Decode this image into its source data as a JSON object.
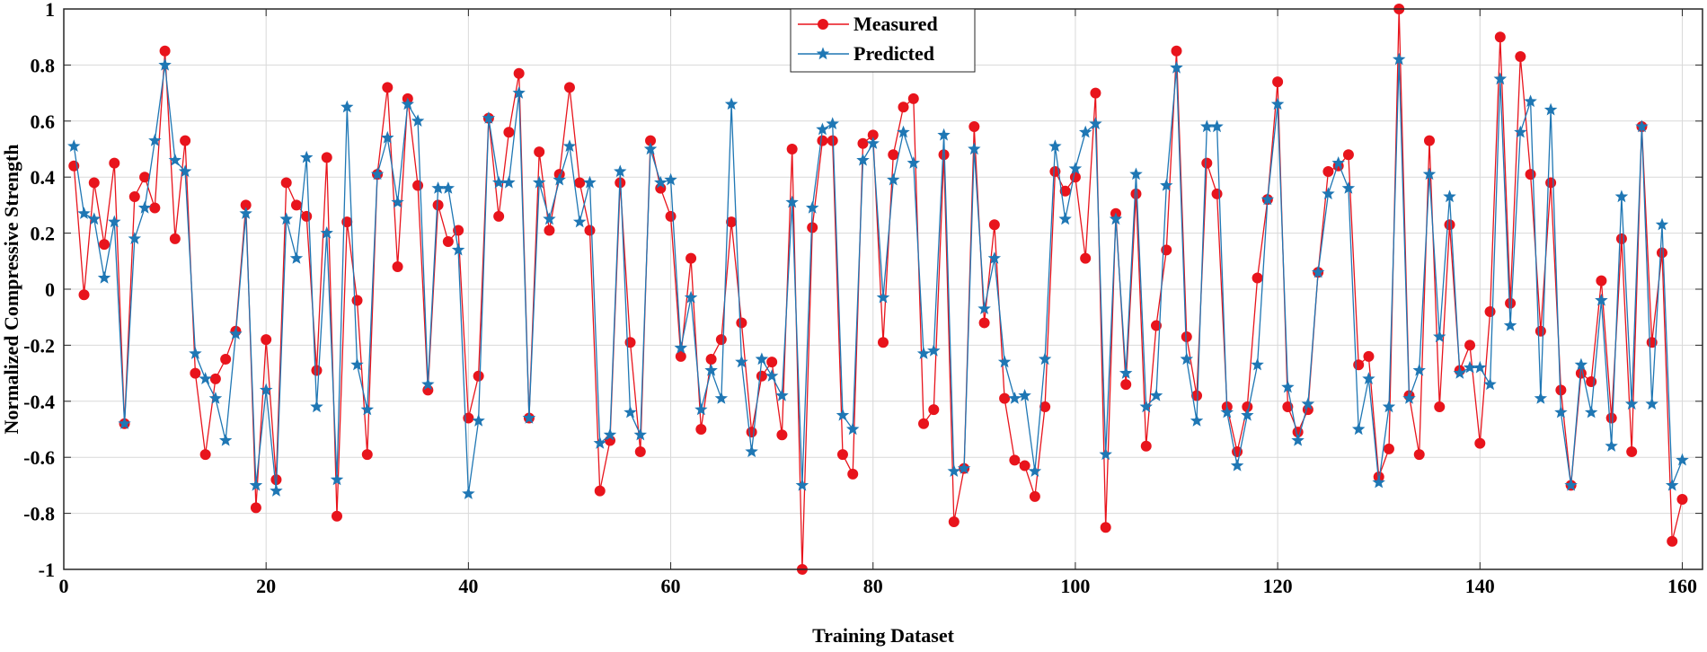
{
  "chart_data": {
    "type": "line",
    "title": "",
    "xlabel": "Training Dataset",
    "ylabel": "Normalized Compressive Strength",
    "xlim": [
      0,
      162
    ],
    "ylim": [
      -1,
      1
    ],
    "xticks": [
      0,
      20,
      40,
      60,
      80,
      100,
      120,
      140,
      160
    ],
    "yticks": [
      -1,
      -0.8,
      -0.6,
      -0.4,
      -0.2,
      0,
      0.2,
      0.4,
      0.6,
      0.8,
      1
    ],
    "xtick_labels": [
      "0",
      "20",
      "40",
      "60",
      "80",
      "100",
      "120",
      "140",
      "160"
    ],
    "ytick_labels": [
      "-1",
      "-0.8",
      "-0.6",
      "-0.4",
      "-0.2",
      "0",
      "0.2",
      "0.4",
      "0.6",
      "0.8",
      "1"
    ],
    "grid": true,
    "legend_position": "top-center",
    "series": [
      {
        "name": "Measured",
        "color": "#e8141c",
        "marker": "circle",
        "x": [
          1,
          2,
          3,
          4,
          5,
          6,
          7,
          8,
          9,
          10,
          11,
          12,
          13,
          14,
          15,
          16,
          17,
          18,
          19,
          20,
          21,
          22,
          23,
          24,
          25,
          26,
          27,
          28,
          29,
          30,
          31,
          32,
          33,
          34,
          35,
          36,
          37,
          38,
          39,
          40,
          41,
          42,
          43,
          44,
          45,
          46,
          47,
          48,
          49,
          50,
          51,
          52,
          53,
          54,
          55,
          56,
          57,
          58,
          59,
          60,
          61,
          62,
          63,
          64,
          65,
          66,
          67,
          68,
          69,
          70,
          71,
          72,
          73,
          74,
          75,
          76,
          77,
          78,
          79,
          80,
          81,
          82,
          83,
          84,
          85,
          86,
          87,
          88,
          89,
          90,
          91,
          92,
          93,
          94,
          95,
          96,
          97,
          98,
          99,
          100,
          101,
          102,
          103,
          104,
          105,
          106,
          107,
          108,
          109,
          110,
          111,
          112,
          113,
          114,
          115,
          116,
          117,
          118,
          119,
          120,
          121,
          122,
          123,
          124,
          125,
          126,
          127,
          128,
          129,
          130,
          131,
          132,
          133,
          134,
          135,
          136,
          137,
          138,
          139,
          140,
          141,
          142,
          143,
          144,
          145,
          146,
          147,
          148,
          149,
          150,
          151,
          152,
          153,
          154,
          155,
          156,
          157,
          158,
          159,
          160
        ],
        "values": [
          0.44,
          -0.02,
          0.38,
          0.16,
          0.45,
          -0.48,
          0.33,
          0.4,
          0.29,
          0.85,
          0.18,
          0.53,
          -0.3,
          -0.59,
          -0.32,
          -0.25,
          -0.15,
          0.3,
          -0.78,
          -0.18,
          -0.68,
          0.38,
          0.3,
          0.26,
          -0.29,
          0.47,
          -0.81,
          0.24,
          -0.04,
          -0.59,
          0.41,
          0.72,
          0.08,
          0.68,
          0.37,
          -0.36,
          0.3,
          0.17,
          0.21,
          -0.46,
          -0.31,
          0.61,
          0.26,
          0.56,
          0.77,
          -0.46,
          0.49,
          0.21,
          0.41,
          0.72,
          0.38,
          0.21,
          -0.72,
          -0.54,
          0.38,
          -0.19,
          -0.58,
          0.53,
          0.36,
          0.26,
          -0.24,
          0.11,
          -0.5,
          -0.25,
          -0.18,
          0.24,
          -0.12,
          -0.51,
          -0.31,
          -0.26,
          -0.52,
          0.5,
          -1.0,
          0.22,
          0.53,
          0.53,
          -0.59,
          -0.66,
          0.52,
          0.55,
          -0.19,
          0.48,
          0.65,
          0.68,
          -0.48,
          -0.43,
          0.48,
          -0.83,
          -0.64,
          0.58,
          -0.12,
          0.23,
          -0.39,
          -0.61,
          -0.63,
          -0.74,
          -0.42,
          0.42,
          0.35,
          0.4,
          0.11,
          0.7,
          -0.85,
          0.27,
          -0.34,
          0.34,
          -0.56,
          -0.13,
          0.14,
          0.85,
          -0.17,
          -0.38,
          0.45,
          0.34,
          -0.42,
          -0.58,
          -0.42,
          0.04,
          0.32,
          0.74,
          -0.42,
          -0.51,
          -0.43,
          0.06,
          0.42,
          0.44,
          0.48,
          -0.27,
          -0.24,
          -0.67,
          -0.57,
          1.0,
          -0.38,
          -0.59,
          0.53,
          -0.42,
          0.23,
          -0.29,
          -0.2,
          -0.55,
          -0.08,
          0.9,
          -0.05,
          0.83,
          0.41,
          -0.15,
          0.38,
          -0.36,
          -0.7,
          -0.3,
          -0.33,
          0.03,
          -0.46,
          0.18,
          -0.58,
          0.58,
          -0.19,
          0.13,
          -0.9,
          -0.75
        ]
      },
      {
        "name": "Predicted",
        "color": "#1f77b4",
        "marker": "star",
        "x": [
          1,
          2,
          3,
          4,
          5,
          6,
          7,
          8,
          9,
          10,
          11,
          12,
          13,
          14,
          15,
          16,
          17,
          18,
          19,
          20,
          21,
          22,
          23,
          24,
          25,
          26,
          27,
          28,
          29,
          30,
          31,
          32,
          33,
          34,
          35,
          36,
          37,
          38,
          39,
          40,
          41,
          42,
          43,
          44,
          45,
          46,
          47,
          48,
          49,
          50,
          51,
          52,
          53,
          54,
          55,
          56,
          57,
          58,
          59,
          60,
          61,
          62,
          63,
          64,
          65,
          66,
          67,
          68,
          69,
          70,
          71,
          72,
          73,
          74,
          75,
          76,
          77,
          78,
          79,
          80,
          81,
          82,
          83,
          84,
          85,
          86,
          87,
          88,
          89,
          90,
          91,
          92,
          93,
          94,
          95,
          96,
          97,
          98,
          99,
          100,
          101,
          102,
          103,
          104,
          105,
          106,
          107,
          108,
          109,
          110,
          111,
          112,
          113,
          114,
          115,
          116,
          117,
          118,
          119,
          120,
          121,
          122,
          123,
          124,
          125,
          126,
          127,
          128,
          129,
          130,
          131,
          132,
          133,
          134,
          135,
          136,
          137,
          138,
          139,
          140,
          141,
          142,
          143,
          144,
          145,
          146,
          147,
          148,
          149,
          150,
          151,
          152,
          153,
          154,
          155,
          156,
          157,
          158,
          159,
          160
        ],
        "values": [
          0.51,
          0.27,
          0.25,
          0.04,
          0.24,
          -0.48,
          0.18,
          0.29,
          0.53,
          0.8,
          0.46,
          0.42,
          -0.23,
          -0.32,
          -0.39,
          -0.54,
          -0.16,
          0.27,
          -0.7,
          -0.36,
          -0.72,
          0.25,
          0.11,
          0.47,
          -0.42,
          0.2,
          -0.68,
          0.65,
          -0.27,
          -0.43,
          0.41,
          0.54,
          0.31,
          0.66,
          0.6,
          -0.34,
          0.36,
          0.36,
          0.14,
          -0.73,
          -0.47,
          0.61,
          0.38,
          0.38,
          0.7,
          -0.46,
          0.38,
          0.25,
          0.39,
          0.51,
          0.24,
          0.38,
          -0.55,
          -0.52,
          0.42,
          -0.44,
          -0.52,
          0.5,
          0.38,
          0.39,
          -0.21,
          -0.03,
          -0.43,
          -0.29,
          -0.39,
          0.66,
          -0.26,
          -0.58,
          -0.25,
          -0.31,
          -0.38,
          0.31,
          -0.7,
          0.29,
          0.57,
          0.59,
          -0.45,
          -0.5,
          0.46,
          0.52,
          -0.03,
          0.39,
          0.56,
          0.45,
          -0.23,
          -0.22,
          0.55,
          -0.65,
          -0.64,
          0.5,
          -0.07,
          0.11,
          -0.26,
          -0.39,
          -0.38,
          -0.65,
          -0.25,
          0.51,
          0.25,
          0.43,
          0.56,
          0.59,
          -0.59,
          0.25,
          -0.3,
          0.41,
          -0.42,
          -0.38,
          0.37,
          0.79,
          -0.25,
          -0.47,
          0.58,
          0.58,
          -0.44,
          -0.63,
          -0.45,
          -0.27,
          0.32,
          0.66,
          -0.35,
          -0.54,
          -0.41,
          0.06,
          0.34,
          0.45,
          0.36,
          -0.5,
          -0.32,
          -0.69,
          -0.42,
          0.82,
          -0.39,
          -0.29,
          0.41,
          -0.17,
          0.33,
          -0.3,
          -0.28,
          -0.28,
          -0.34,
          0.75,
          -0.13,
          0.56,
          0.67,
          -0.39,
          0.64,
          -0.44,
          -0.7,
          -0.27,
          -0.44,
          -0.04,
          -0.56,
          0.33,
          -0.41,
          0.58,
          -0.41,
          0.23,
          -0.7,
          -0.61
        ]
      }
    ]
  }
}
